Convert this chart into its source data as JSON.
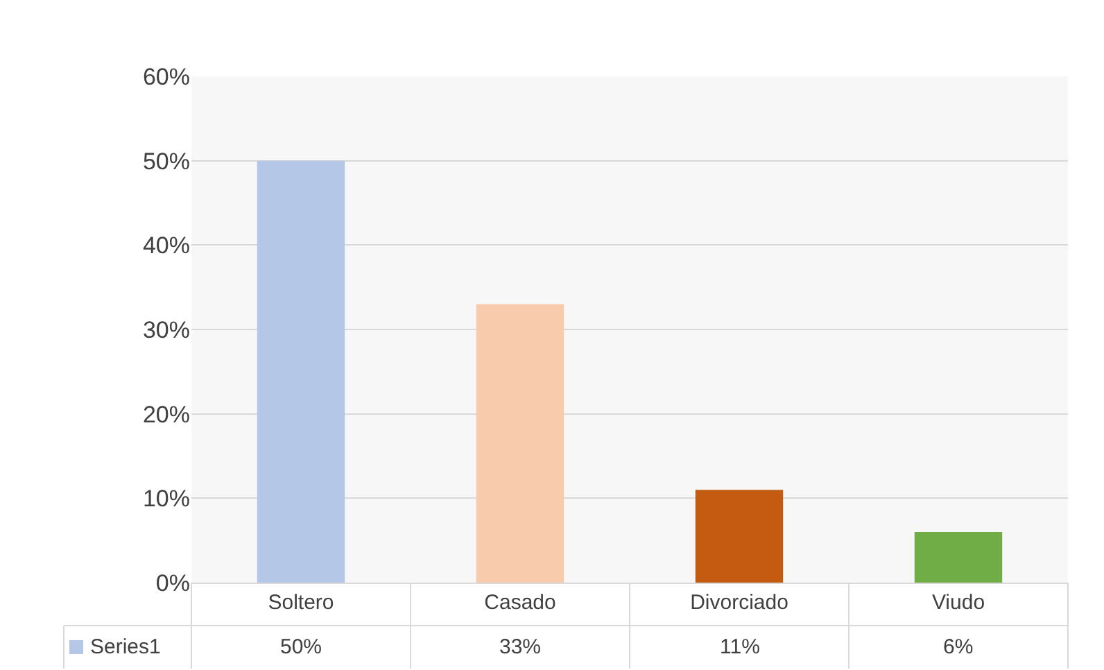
{
  "chart_data": {
    "type": "bar",
    "categories": [
      "Soltero",
      "Casado",
      "Divorciado",
      "Viudo"
    ],
    "series": [
      {
        "name": "Series1",
        "color": "#b4c7e7",
        "colors": [
          "#b4c7e7",
          "#f8cbad",
          "#c55a11",
          "#70ad47"
        ],
        "values": [
          50,
          33,
          11,
          6
        ],
        "value_labels": [
          "50%",
          "33%",
          "11%",
          "6%"
        ]
      }
    ],
    "ylim": [
      0,
      60
    ],
    "yticks": [
      {
        "value": 0,
        "label": "0%"
      },
      {
        "value": 10,
        "label": "10%"
      },
      {
        "value": 20,
        "label": "20%"
      },
      {
        "value": 30,
        "label": "30%"
      },
      {
        "value": 40,
        "label": "40%"
      },
      {
        "value": 50,
        "label": "50%"
      },
      {
        "value": 60,
        "label": "60%"
      }
    ],
    "grid": "y",
    "legend": "bottom left"
  }
}
